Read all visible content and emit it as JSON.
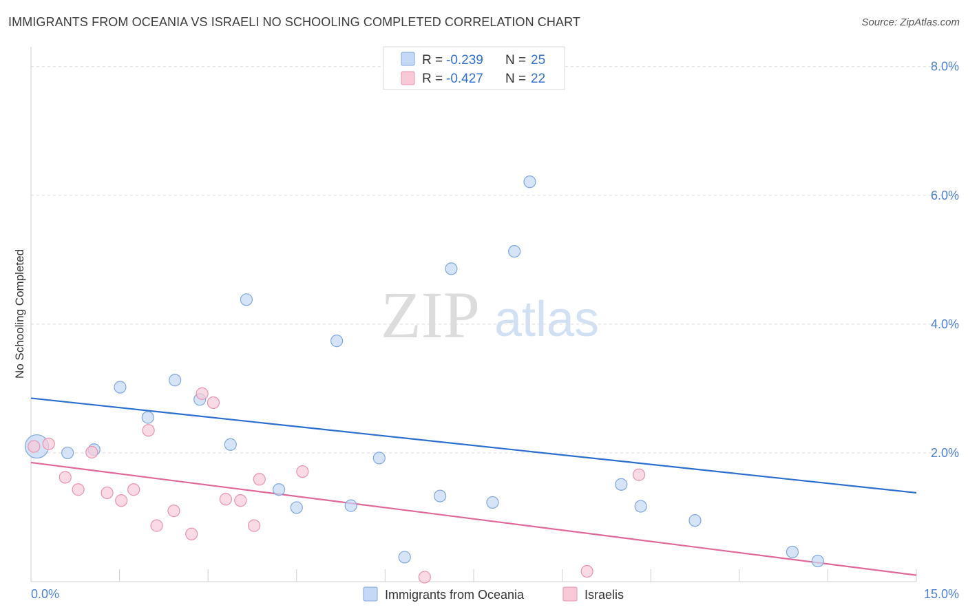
{
  "title": "IMMIGRANTS FROM OCEANIA VS ISRAELI NO SCHOOLING COMPLETED CORRELATION CHART",
  "source": "Source: ZipAtlas.com",
  "watermark": {
    "zip": "ZIP",
    "atlas": "atlas"
  },
  "legend": {
    "series": [
      {
        "r_label": "R =",
        "r_value": "-0.239",
        "n_label": "N =",
        "n_value": "25"
      },
      {
        "r_label": "R =",
        "r_value": "-0.427",
        "n_label": "N =",
        "n_value": "22"
      }
    ]
  },
  "colors": {
    "oceania_fill": "#c5d8f5",
    "oceania_stroke": "#7ea6df",
    "oceania_line": "#2a6fd0",
    "israeli_fill": "#f8cad8",
    "israeli_stroke": "#e892ae",
    "israeli_line": "#e0679a",
    "tick_label": "#4a7fd4"
  },
  "chart_data": {
    "type": "scatter",
    "title": "IMMIGRANTS FROM OCEANIA VS ISRAELI NO SCHOOLING COMPLETED CORRELATION CHART",
    "xlabel": "",
    "ylabel": "No Schooling Completed",
    "xlim": [
      0,
      15
    ],
    "ylim": [
      0,
      8.2
    ],
    "x_tick_labels": [
      "0.0%",
      "15.0%"
    ],
    "y_ticks": [
      2,
      4,
      6,
      8
    ],
    "y_tick_labels": [
      "2.0%",
      "4.0%",
      "6.0%",
      "8.0%"
    ],
    "grid": true,
    "legend_position": "top-center",
    "series": [
      {
        "name": "Immigrants from Oceania",
        "points": [
          {
            "x": 0.1,
            "y": 2.1,
            "big": true
          },
          {
            "x": 0.62,
            "y": 2.0
          },
          {
            "x": 1.07,
            "y": 2.05
          },
          {
            "x": 1.51,
            "y": 3.02
          },
          {
            "x": 1.98,
            "y": 2.55
          },
          {
            "x": 2.44,
            "y": 3.13
          },
          {
            "x": 2.86,
            "y": 2.83
          },
          {
            "x": 3.38,
            "y": 2.13
          },
          {
            "x": 3.65,
            "y": 4.38
          },
          {
            "x": 4.2,
            "y": 1.43
          },
          {
            "x": 4.5,
            "y": 1.15
          },
          {
            "x": 5.18,
            "y": 3.74
          },
          {
            "x": 5.42,
            "y": 1.18
          },
          {
            "x": 5.9,
            "y": 1.92
          },
          {
            "x": 6.33,
            "y": 0.38
          },
          {
            "x": 6.93,
            "y": 1.33
          },
          {
            "x": 7.12,
            "y": 4.86
          },
          {
            "x": 7.82,
            "y": 1.23
          },
          {
            "x": 8.19,
            "y": 5.13
          },
          {
            "x": 8.45,
            "y": 6.21
          },
          {
            "x": 10.0,
            "y": 1.51
          },
          {
            "x": 10.33,
            "y": 1.17
          },
          {
            "x": 11.25,
            "y": 0.95
          },
          {
            "x": 12.9,
            "y": 0.46
          },
          {
            "x": 13.33,
            "y": 0.32
          }
        ],
        "trend": {
          "x": [
            0,
            15
          ],
          "y": [
            2.85,
            1.38
          ]
        }
      },
      {
        "name": "Israelis",
        "points": [
          {
            "x": 0.3,
            "y": 2.14
          },
          {
            "x": 0.58,
            "y": 1.62
          },
          {
            "x": 0.8,
            "y": 1.43
          },
          {
            "x": 1.03,
            "y": 2.01
          },
          {
            "x": 1.29,
            "y": 1.38
          },
          {
            "x": 1.53,
            "y": 1.26
          },
          {
            "x": 1.74,
            "y": 1.43
          },
          {
            "x": 1.99,
            "y": 2.35
          },
          {
            "x": 2.13,
            "y": 0.87
          },
          {
            "x": 2.42,
            "y": 1.1
          },
          {
            "x": 2.72,
            "y": 0.74
          },
          {
            "x": 2.9,
            "y": 2.92
          },
          {
            "x": 3.09,
            "y": 2.78
          },
          {
            "x": 3.3,
            "y": 1.28
          },
          {
            "x": 3.55,
            "y": 1.26
          },
          {
            "x": 3.78,
            "y": 0.87
          },
          {
            "x": 3.87,
            "y": 1.59
          },
          {
            "x": 4.6,
            "y": 1.71
          },
          {
            "x": 6.67,
            "y": 0.07
          },
          {
            "x": 9.42,
            "y": 0.16
          },
          {
            "x": 10.3,
            "y": 1.66
          },
          {
            "x": 0.05,
            "y": 2.1
          }
        ],
        "trend": {
          "x": [
            0,
            15
          ],
          "y": [
            1.85,
            0.1
          ]
        }
      }
    ]
  }
}
